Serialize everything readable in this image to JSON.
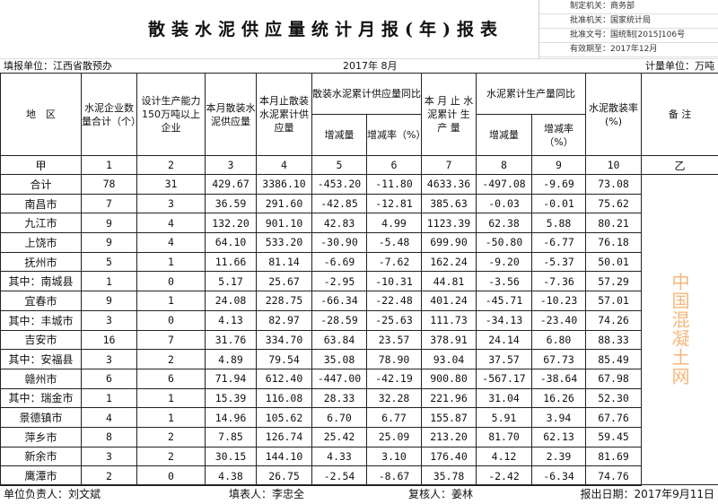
{
  "title": "散装水泥供应量统计月报(年)报表",
  "meta": [
    "制定机关：商务部",
    "批准机关：国家统计局",
    "批准文号：国统制[2015]106号",
    "有效期至：2017年12月"
  ],
  "info": {
    "unit": "填报单位：江西省散预办",
    "period": "2017年 8月",
    "measure": "计量单位：万吨"
  },
  "headers": {
    "region": "地　区",
    "count": "水泥企业数量合计（个）",
    "big": "设计生产能力150万吨以上企业",
    "month_supply": "本月散装水泥供应量",
    "cum_supply": "本月止散装水泥累计供应量",
    "supply_cmp": "散装水泥累计供应量同比",
    "inc": "增减量",
    "rate": "增减率（%）",
    "cum_prod": "本 月 止 水泥累计 生 产 量",
    "prod_cmp": "水泥累计生产量同比",
    "inc2": "增减量",
    "rate2": "增减率（%）",
    "bulk_rate": "水泥散装率(%)",
    "remark": "备 注"
  },
  "index_row": [
    "甲",
    "1",
    "2",
    "3",
    "4",
    "5",
    "6",
    "7",
    "8",
    "9",
    "10",
    "乙"
  ],
  "rows": [
    [
      "合计",
      "78",
      "31",
      "429.67",
      "3386.10",
      "-453.20",
      "-11.80",
      "4633.36",
      "-497.08",
      "-9.69",
      "73.08"
    ],
    [
      "南昌市",
      "7",
      "3",
      "36.59",
      "291.60",
      "-42.85",
      "-12.81",
      "385.63",
      "-0.03",
      "-0.01",
      "75.62"
    ],
    [
      "九江市",
      "9",
      "4",
      "132.20",
      "901.10",
      "42.83",
      "4.99",
      "1123.39",
      "62.38",
      "5.88",
      "80.21"
    ],
    [
      "上饶市",
      "9",
      "4",
      "64.10",
      "533.20",
      "-30.90",
      "-5.48",
      "699.90",
      "-50.80",
      "-6.77",
      "76.18"
    ],
    [
      "抚州市",
      "5",
      "1",
      "11.66",
      "81.14",
      "-6.69",
      "-7.62",
      "162.24",
      "-9.20",
      "-5.37",
      "50.01"
    ],
    [
      "其中：南城县",
      "1",
      "0",
      "5.17",
      "25.67",
      "-2.95",
      "-10.31",
      "44.81",
      "-3.56",
      "-7.36",
      "57.29"
    ],
    [
      "宜春市",
      "9",
      "1",
      "24.08",
      "228.75",
      "-66.34",
      "-22.48",
      "401.24",
      "-45.71",
      "-10.23",
      "57.01"
    ],
    [
      "其中：丰城市",
      "3",
      "0",
      "4.13",
      "82.97",
      "-28.59",
      "-25.63",
      "111.73",
      "-34.13",
      "-23.40",
      "74.26"
    ],
    [
      "吉安市",
      "16",
      "7",
      "31.76",
      "334.70",
      "63.84",
      "23.57",
      "378.91",
      "24.14",
      "6.80",
      "88.33"
    ],
    [
      "其中：安福县",
      "3",
      "2",
      "4.89",
      "79.54",
      "35.08",
      "78.90",
      "93.04",
      "37.57",
      "67.73",
      "85.49"
    ],
    [
      "赣州市",
      "6",
      "6",
      "71.94",
      "612.40",
      "-447.00",
      "-42.19",
      "900.80",
      "-567.17",
      "-38.64",
      "67.98"
    ],
    [
      "其中：瑞金市",
      "1",
      "1",
      "15.39",
      "116.08",
      "28.33",
      "32.28",
      "221.96",
      "31.04",
      "16.26",
      "52.30"
    ],
    [
      "景德镇市",
      "4",
      "1",
      "14.96",
      "105.62",
      "6.70",
      "6.77",
      "155.87",
      "5.91",
      "3.94",
      "67.76"
    ],
    [
      "萍乡市",
      "8",
      "2",
      "7.85",
      "126.74",
      "25.42",
      "25.09",
      "213.20",
      "81.70",
      "62.13",
      "59.45"
    ],
    [
      "新余市",
      "3",
      "2",
      "30.15",
      "144.10",
      "4.33",
      "3.10",
      "176.40",
      "4.12",
      "2.39",
      "81.69"
    ],
    [
      "鹰潭市",
      "2",
      "0",
      "4.38",
      "26.75",
      "-2.54",
      "-8.67",
      "35.78",
      "-2.42",
      "-6.34",
      "74.76"
    ]
  ],
  "footer": {
    "head": "单位负责人：刘文斌",
    "filler": "填表人：李忠全",
    "reviewer": "复核人：姜林",
    "date": "报出日期：2017年9月11日"
  },
  "watermark": "中国混凝土网"
}
